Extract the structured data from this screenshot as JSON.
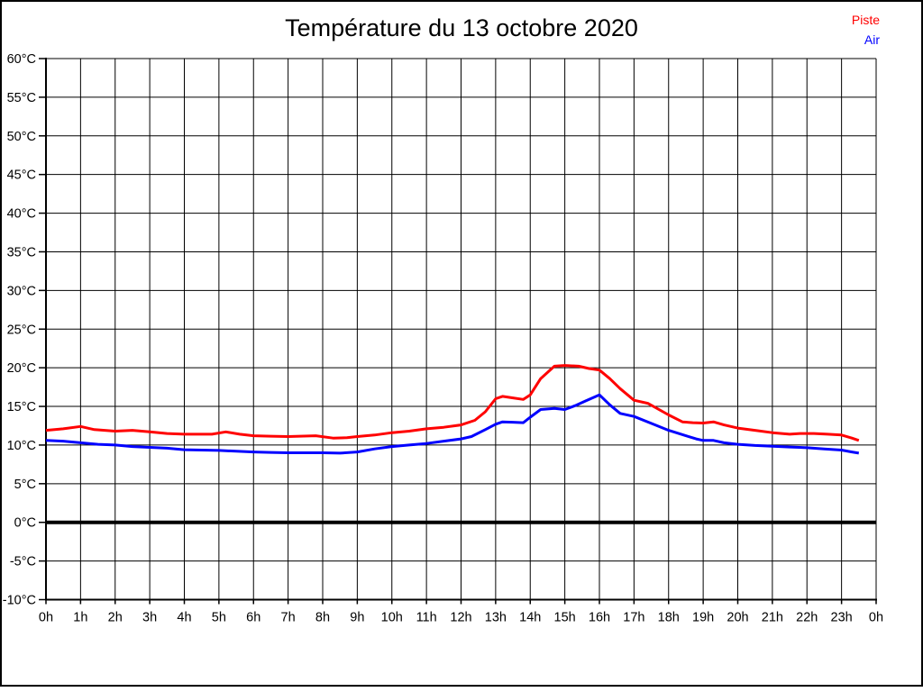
{
  "page": {
    "background": "#FFFFFF",
    "border_color": "#000000"
  },
  "header": {
    "title": "Température du 13 octobre 2020"
  },
  "legend": {
    "items": [
      {
        "label": "Piste",
        "color": "#FF0000"
      },
      {
        "label": "Air",
        "color": "#0000FF"
      }
    ]
  },
  "chart_data": {
    "type": "line",
    "title": "Température du 13 octobre 2020",
    "xlabel": "",
    "ylabel": "",
    "xlim": [
      0,
      24
    ],
    "ylim": [
      -10,
      60
    ],
    "grid": true,
    "legend_position": "top-right",
    "grid_color": "#000000",
    "zero_line_value": 0,
    "x_tick_values": [
      0,
      1,
      2,
      3,
      4,
      5,
      6,
      7,
      8,
      9,
      10,
      11,
      12,
      13,
      14,
      15,
      16,
      17,
      18,
      19,
      20,
      21,
      22,
      23,
      24
    ],
    "x_tick_labels": [
      "0h",
      "1h",
      "2h",
      "3h",
      "4h",
      "5h",
      "6h",
      "7h",
      "8h",
      "9h",
      "10h",
      "11h",
      "12h",
      "13h",
      "14h",
      "15h",
      "16h",
      "17h",
      "18h",
      "19h",
      "20h",
      "21h",
      "22h",
      "23h",
      "0h"
    ],
    "y_tick_values": [
      60,
      55,
      50,
      45,
      40,
      35,
      30,
      25,
      20,
      15,
      10,
      5,
      0,
      -5,
      -10
    ],
    "y_tick_labels": [
      "60°C",
      "55°C",
      "50°C",
      "45°C",
      "40°C",
      "35°C",
      "30°C",
      "25°C",
      "20°C",
      "15°C",
      "10°C",
      "5°C",
      "0°C",
      "-5°C",
      "-10°C"
    ],
    "series": [
      {
        "name": "Piste",
        "color": "#FF0000",
        "x": [
          0,
          0.5,
          1,
          1.4,
          2,
          2.5,
          3,
          3.5,
          4,
          4.8,
          5.2,
          5.6,
          6,
          6.5,
          7,
          7.8,
          8.3,
          8.7,
          9,
          9.5,
          10,
          10.5,
          11,
          11.5,
          12,
          12.4,
          12.7,
          13,
          13.2,
          13.5,
          13.8,
          14,
          14.3,
          14.7,
          15,
          15.4,
          15.7,
          16,
          16.3,
          16.6,
          17,
          17.4,
          18,
          18.4,
          18.7,
          19,
          19.3,
          19.6,
          20,
          20.5,
          21,
          21.5,
          21.8,
          22.2,
          22.6,
          23,
          23.3,
          23.5
        ],
        "y": [
          11.9,
          12.1,
          12.4,
          12.0,
          11.8,
          11.9,
          11.7,
          11.5,
          11.4,
          11.4,
          11.7,
          11.4,
          11.2,
          11.15,
          11.1,
          11.2,
          10.9,
          10.95,
          11.1,
          11.3,
          11.6,
          11.8,
          12.1,
          12.3,
          12.6,
          13.2,
          14.3,
          16.0,
          16.3,
          16.1,
          15.9,
          16.5,
          18.6,
          20.2,
          20.3,
          20.2,
          19.9,
          19.7,
          18.6,
          17.3,
          15.8,
          15.4,
          13.9,
          13.0,
          12.9,
          12.85,
          13.0,
          12.6,
          12.2,
          11.9,
          11.6,
          11.4,
          11.5,
          11.5,
          11.4,
          11.3,
          10.9,
          10.6
        ]
      },
      {
        "name": "Air",
        "color": "#0000FF",
        "x": [
          0,
          0.5,
          1,
          1.5,
          2,
          2.5,
          3,
          3.5,
          4,
          4.5,
          5,
          5.5,
          6,
          6.5,
          7,
          7.5,
          8,
          8.5,
          9,
          9.5,
          10,
          10.5,
          11,
          11.5,
          12,
          12.3,
          12.7,
          13,
          13.2,
          13.5,
          13.8,
          14,
          14.3,
          14.7,
          15,
          15.3,
          15.6,
          16,
          16.3,
          16.6,
          17,
          17.5,
          18,
          18.5,
          18.8,
          19,
          19.3,
          19.6,
          20,
          20.5,
          21,
          21.5,
          22,
          22.5,
          23,
          23.3,
          23.5
        ],
        "y": [
          10.6,
          10.5,
          10.3,
          10.1,
          10.0,
          9.8,
          9.7,
          9.6,
          9.4,
          9.35,
          9.3,
          9.2,
          9.1,
          9.05,
          9.0,
          9.0,
          9.0,
          8.95,
          9.1,
          9.5,
          9.8,
          10.0,
          10.2,
          10.5,
          10.8,
          11.1,
          12.0,
          12.7,
          13.0,
          12.95,
          12.9,
          13.6,
          14.6,
          14.75,
          14.6,
          15.1,
          15.7,
          16.5,
          15.2,
          14.1,
          13.7,
          12.8,
          11.9,
          11.2,
          10.8,
          10.6,
          10.6,
          10.3,
          10.1,
          9.95,
          9.85,
          9.75,
          9.65,
          9.5,
          9.35,
          9.1,
          8.95
        ]
      }
    ]
  }
}
